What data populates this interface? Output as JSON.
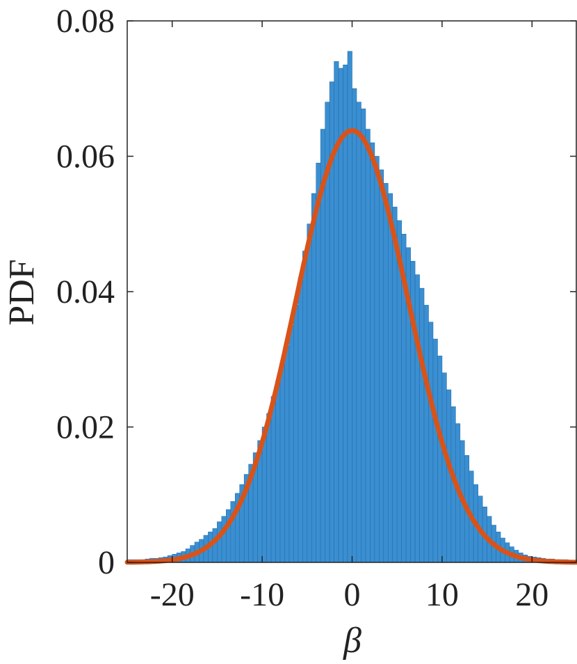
{
  "chart_data": {
    "type": "bar",
    "title": "",
    "xlabel": "β",
    "ylabel": "PDF",
    "xlim": [
      -25,
      25
    ],
    "ylim": [
      0,
      0.08
    ],
    "xticks": [
      -20,
      -10,
      0,
      10,
      20
    ],
    "yticks": [
      0,
      0.02,
      0.04,
      0.06,
      0.08
    ],
    "xtick_labels": [
      "-20",
      "-10",
      "0",
      "10",
      "20"
    ],
    "ytick_labels": [
      "0",
      "0.02",
      "0.04",
      "0.06",
      "0.08"
    ],
    "grid": false,
    "legend": "none",
    "colors": {
      "histogram": "#3b8fd0",
      "histogram_edge": "#1f6fb0",
      "fit_curve": "#d95319",
      "axes": "#222222"
    },
    "histogram": {
      "bin_width": 0.5,
      "bins_center": [
        -24.75,
        -24.25,
        -23.75,
        -23.25,
        -22.75,
        -22.25,
        -21.75,
        -21.25,
        -20.75,
        -20.25,
        -19.75,
        -19.25,
        -18.75,
        -18.25,
        -17.75,
        -17.25,
        -16.75,
        -16.25,
        -15.75,
        -15.25,
        -14.75,
        -14.25,
        -13.75,
        -13.25,
        -12.75,
        -12.25,
        -11.75,
        -11.25,
        -10.75,
        -10.25,
        -9.75,
        -9.25,
        -8.75,
        -8.25,
        -7.75,
        -7.25,
        -6.75,
        -6.25,
        -5.75,
        -5.25,
        -4.75,
        -4.25,
        -3.75,
        -3.25,
        -2.75,
        -2.25,
        -1.75,
        -1.25,
        -0.75,
        -0.25,
        0.25,
        0.75,
        1.25,
        1.75,
        2.25,
        2.75,
        3.25,
        3.75,
        4.25,
        4.75,
        5.25,
        5.75,
        6.25,
        6.75,
        7.25,
        7.75,
        8.25,
        8.75,
        9.25,
        9.75,
        10.25,
        10.75,
        11.25,
        11.75,
        12.25,
        12.75,
        13.25,
        13.75,
        14.25,
        14.75,
        15.25,
        15.75,
        16.25,
        16.75,
        17.25,
        17.75,
        18.25,
        18.75,
        19.25,
        19.75,
        20.25,
        20.75,
        21.25,
        21.75,
        22.25,
        22.75,
        23.25,
        23.75,
        24.25,
        24.75
      ],
      "values": [
        0.0004,
        0.0004,
        0.0004,
        0.0004,
        0.0005,
        0.0006,
        0.0006,
        0.0007,
        0.0008,
        0.001,
        0.0012,
        0.0014,
        0.0016,
        0.002,
        0.0025,
        0.003,
        0.0034,
        0.004,
        0.0045,
        0.005,
        0.006,
        0.0068,
        0.0078,
        0.009,
        0.0102,
        0.0115,
        0.013,
        0.0145,
        0.0162,
        0.018,
        0.02,
        0.022,
        0.0245,
        0.0268,
        0.0292,
        0.032,
        0.035,
        0.038,
        0.042,
        0.046,
        0.05,
        0.0545,
        0.059,
        0.064,
        0.068,
        0.071,
        0.074,
        0.073,
        0.0735,
        0.0755,
        0.07,
        0.068,
        0.067,
        0.064,
        0.062,
        0.06,
        0.058,
        0.056,
        0.0545,
        0.0525,
        0.0505,
        0.0485,
        0.0465,
        0.0445,
        0.0425,
        0.0405,
        0.038,
        0.0355,
        0.033,
        0.0305,
        0.028,
        0.0255,
        0.023,
        0.0205,
        0.018,
        0.0158,
        0.0135,
        0.0115,
        0.0098,
        0.0082,
        0.0068,
        0.0055,
        0.0045,
        0.0036,
        0.0029,
        0.0023,
        0.0018,
        0.0014,
        0.0011,
        0.0009,
        0.0008,
        0.0007,
        0.0006,
        0.0005,
        0.0005,
        0.0004,
        0.0004,
        0.0004,
        0.0003,
        0.0003
      ]
    },
    "series": [
      {
        "type": "line",
        "mu": 0,
        "sigma": 6.25,
        "peak": 0.0638
      }
    ]
  }
}
